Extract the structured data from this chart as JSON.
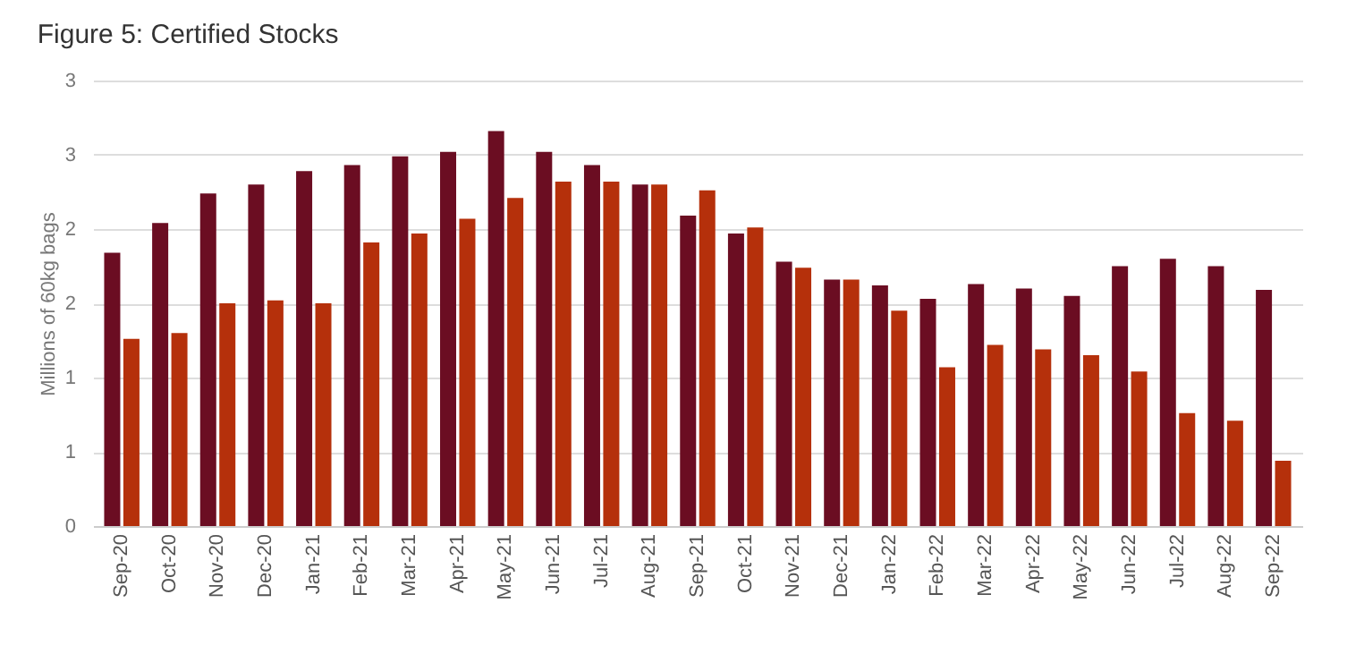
{
  "chart_data": {
    "type": "bar",
    "title": "Figure 5: Certified Stocks",
    "ylabel": "Millions of 60kg bags",
    "categories": [
      "Sep-20",
      "Oct-20",
      "Nov-20",
      "Dec-20",
      "Jan-21",
      "Feb-21",
      "Mar-21",
      "Apr-21",
      "May-21",
      "Jun-21",
      "Jul-21",
      "Aug-21",
      "Sep-21",
      "Oct-21",
      "Nov-21",
      "Dec-21",
      "Jan-22",
      "Feb-22",
      "Mar-22",
      "Apr-22",
      "May-22",
      "Jun-22",
      "Jul-22",
      "Aug-22",
      "Sep-22"
    ],
    "series": [
      {
        "color": "#6b0d22",
        "values": [
          1.84,
          2.04,
          2.24,
          2.3,
          2.39,
          2.43,
          2.49,
          2.52,
          2.66,
          2.52,
          2.43,
          2.3,
          2.09,
          1.97,
          1.78,
          1.66,
          1.62,
          1.53,
          1.63,
          1.6,
          1.55,
          1.75,
          1.8,
          1.75,
          1.59
        ]
      },
      {
        "color": "#b5300b",
        "values": [
          1.26,
          1.3,
          1.5,
          1.52,
          1.5,
          1.91,
          1.97,
          2.07,
          2.21,
          2.32,
          2.32,
          2.3,
          2.26,
          2.01,
          1.74,
          1.66,
          1.45,
          1.07,
          1.22,
          1.19,
          1.15,
          1.04,
          0.76,
          0.71,
          0.44
        ]
      }
    ],
    "ylim": [
      0,
      3
    ],
    "yticks": [
      0,
      {
        "value": 0.5,
        "label": "1"
      },
      1,
      {
        "value": 1.5,
        "label": "2"
      },
      2,
      {
        "value": 2.5,
        "label": "3"
      },
      3
    ],
    "grid": "y",
    "legend": false
  }
}
